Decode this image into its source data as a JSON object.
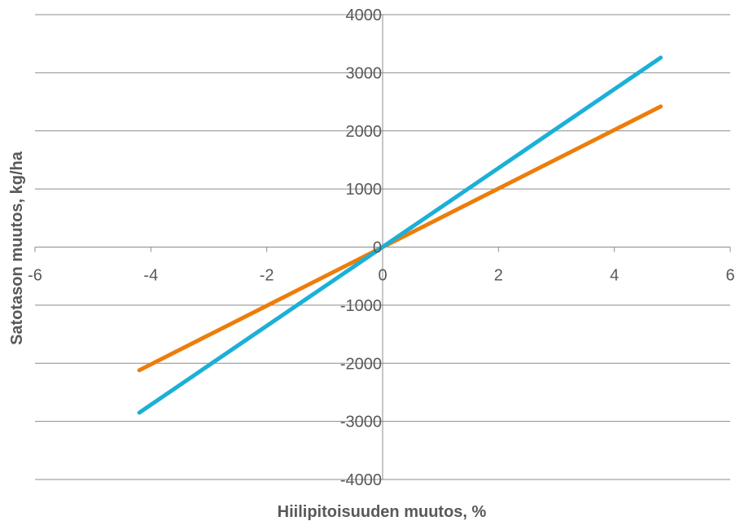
{
  "chart_data": {
    "type": "line",
    "title": "",
    "xlabel": "Hiilipitoisuuden muutos, %",
    "ylabel": "Satotason muutos, kg/ha",
    "xlim": [
      -6,
      6
    ],
    "ylim": [
      -4000,
      4000
    ],
    "xticks": [
      -6,
      -4,
      -2,
      0,
      2,
      4,
      6
    ],
    "yticks": [
      -4000,
      -3000,
      -2000,
      -1000,
      0,
      1000,
      2000,
      3000,
      4000
    ],
    "grid": "horizontal",
    "legend": "none",
    "series": [
      {
        "color": "#ED7D0A",
        "x": [
          -4.2,
          4.8
        ],
        "y": [
          -2120,
          2420
        ]
      },
      {
        "color": "#1BB0D8",
        "x": [
          -4.2,
          4.8
        ],
        "y": [
          -2850,
          3260
        ]
      }
    ]
  }
}
